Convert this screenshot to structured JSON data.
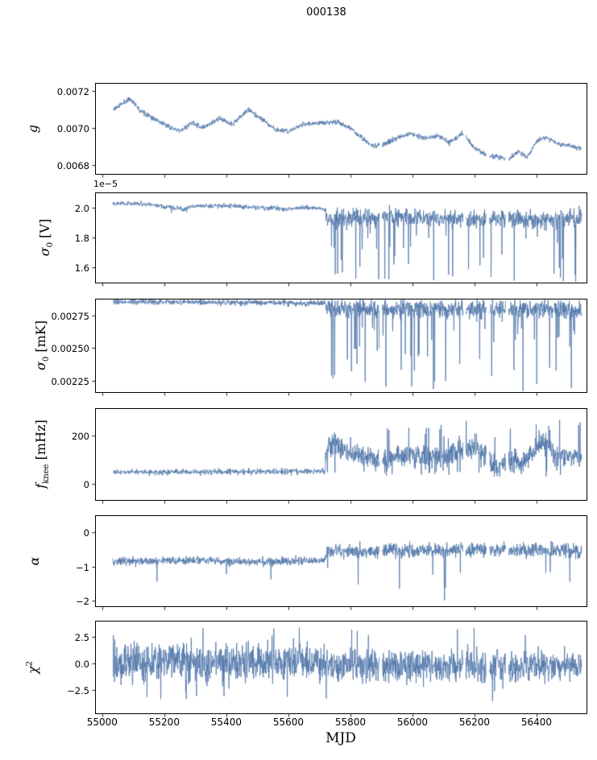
{
  "chart_data": {
    "type": "line",
    "title": "000138",
    "xlabel": "MJD",
    "line_color": "#4c74a8",
    "background": "#ffffff",
    "x_axis": {
      "min": 54977,
      "max": 56561,
      "ticks": [
        55000,
        55200,
        55400,
        55600,
        55800,
        56000,
        56200,
        56400
      ],
      "tick_labels": [
        "55000",
        "55200",
        "55400",
        "55600",
        "55800",
        "56000",
        "56200",
        "56400"
      ]
    },
    "x_start": 55035,
    "x_end": 56545,
    "n_points": 1600,
    "gaps": [
      [
        55893,
        55903
      ],
      [
        56163,
        56172
      ],
      [
        56238,
        56248
      ],
      [
        56300,
        56310
      ]
    ],
    "panels": [
      {
        "name": "g",
        "ylabel": {
          "main": "g",
          "sub": "",
          "sup": "",
          "unit": ""
        },
        "offset_text": "",
        "ylim": [
          0.00675,
          0.007245
        ],
        "yticks": [
          0.0068,
          0.007,
          0.0072
        ],
        "ytick_labels": [
          "0.0068",
          "0.0070",
          "0.0072"
        ],
        "seed": 11,
        "signal": {
          "anchors": [
            [
              55035,
              0.0071
            ],
            [
              55090,
              0.00716
            ],
            [
              55120,
              0.0071
            ],
            [
              55200,
              0.00702
            ],
            [
              55250,
              0.00698
            ],
            [
              55290,
              0.00703
            ],
            [
              55320,
              0.007
            ],
            [
              55380,
              0.00705
            ],
            [
              55420,
              0.00702
            ],
            [
              55470,
              0.0071
            ],
            [
              55520,
              0.00704
            ],
            [
              55560,
              0.00699
            ],
            [
              55600,
              0.00698
            ],
            [
              55650,
              0.00702
            ],
            [
              55700,
              0.00703
            ],
            [
              55760,
              0.00703
            ],
            [
              55800,
              0.007
            ],
            [
              55840,
              0.00694
            ],
            [
              55870,
              0.0069
            ],
            [
              55920,
              0.00692
            ],
            [
              55960,
              0.00695
            ],
            [
              56000,
              0.00697
            ],
            [
              56040,
              0.00694
            ],
            [
              56080,
              0.00696
            ],
            [
              56120,
              0.00692
            ],
            [
              56160,
              0.00697
            ],
            [
              56200,
              0.00689
            ],
            [
              56240,
              0.00685
            ],
            [
              56280,
              0.00684
            ],
            [
              56310,
              0.00683
            ],
            [
              56340,
              0.00687
            ],
            [
              56370,
              0.00684
            ],
            [
              56400,
              0.00693
            ],
            [
              56430,
              0.00695
            ],
            [
              56460,
              0.00692
            ],
            [
              56512,
              0.0069
            ],
            [
              56545,
              0.00689
            ]
          ],
          "noise": [
            {
              "x0": 55035,
              "x1": 56545,
              "amp": 1.2e-05
            }
          ],
          "spikes": []
        }
      },
      {
        "name": "sigma0_V",
        "ylabel": {
          "main": "σ",
          "sub": "0",
          "sup": "",
          "unit": " [V]"
        },
        "offset_text": "1e−5",
        "ylim": [
          1.5,
          2.1
        ],
        "yticks": [
          1.6,
          1.8,
          2.0
        ],
        "ytick_labels": [
          "1.6",
          "1.8",
          "2.0"
        ],
        "seed": 22,
        "signal": {
          "anchors": [
            [
              55035,
              2.03
            ],
            [
              55150,
              2.02
            ],
            [
              55220,
              2.0
            ],
            [
              55260,
              1.99
            ],
            [
              55300,
              2.01
            ],
            [
              55400,
              2.01
            ],
            [
              55500,
              2.0
            ],
            [
              55600,
              1.99
            ],
            [
              55660,
              2.0
            ],
            [
              55718,
              1.99
            ],
            [
              55722,
              1.93
            ],
            [
              55800,
              1.93
            ],
            [
              55900,
              1.94
            ],
            [
              56000,
              1.93
            ],
            [
              56100,
              1.93
            ],
            [
              56200,
              1.92
            ],
            [
              56300,
              1.93
            ],
            [
              56400,
              1.92
            ],
            [
              56545,
              1.93
            ]
          ],
          "noise": [
            {
              "x0": 55035,
              "x1": 55720,
              "amp": 0.013
            },
            {
              "x0": 55720,
              "x1": 56545,
              "amp": 0.05
            }
          ],
          "spikes": [
            {
              "x0": 55722,
              "x1": 56545,
              "rate": 0.05,
              "lo": 1.55,
              "hi": 1.85
            },
            {
              "x0": 55722,
              "x1": 56545,
              "rate": 0.012,
              "lo": 1.5,
              "hi": 1.57
            },
            {
              "x0": 55210,
              "x1": 55330,
              "rate": 0.03,
              "lo": 1.95,
              "hi": 1.99
            }
          ]
        }
      },
      {
        "name": "sigma0_mK",
        "ylabel": {
          "main": "σ",
          "sub": "0",
          "sup": "",
          "unit": " [mK]"
        },
        "offset_text": "",
        "ylim": [
          0.00216,
          0.00288
        ],
        "yticks": [
          0.00225,
          0.0025,
          0.00275
        ],
        "ytick_labels": [
          "0.00225",
          "0.00250",
          "0.00275"
        ],
        "seed": 33,
        "signal": {
          "anchors": [
            [
              55035,
              0.002855
            ],
            [
              55300,
              0.002855
            ],
            [
              55500,
              0.00285
            ],
            [
              55718,
              0.002845
            ],
            [
              55722,
              0.002805
            ],
            [
              56000,
              0.0028
            ],
            [
              56200,
              0.002795
            ],
            [
              56400,
              0.0028
            ],
            [
              56545,
              0.002795
            ]
          ],
          "noise": [
            {
              "x0": 55035,
              "x1": 55720,
              "amp": 2e-05
            },
            {
              "x0": 55720,
              "x1": 56545,
              "amp": 6e-05
            }
          ],
          "spikes": [
            {
              "x0": 55722,
              "x1": 56545,
              "rate": 0.05,
              "lo": 0.00224,
              "hi": 0.00266
            },
            {
              "x0": 55722,
              "x1": 56545,
              "rate": 0.012,
              "lo": 0.00216,
              "hi": 0.00226
            }
          ]
        }
      },
      {
        "name": "f_knee",
        "ylabel": {
          "main": "f",
          "sub": "knee",
          "sup": "",
          "unit": " [mHz]"
        },
        "offset_text": "",
        "ylim": [
          -67,
          313
        ],
        "yticks": [
          0,
          200
        ],
        "ytick_labels": [
          "0",
          "200"
        ],
        "seed": 44,
        "signal": {
          "anchors": [
            [
              55035,
              48
            ],
            [
              55718,
              52
            ],
            [
              55724,
              150
            ],
            [
              55760,
              160
            ],
            [
              55800,
              130
            ],
            [
              55850,
              110
            ],
            [
              55880,
              95
            ],
            [
              55920,
              100
            ],
            [
              55960,
              120
            ],
            [
              56000,
              115
            ],
            [
              56050,
              105
            ],
            [
              56100,
              120
            ],
            [
              56150,
              135
            ],
            [
              56200,
              150
            ],
            [
              56230,
              120
            ],
            [
              56260,
              80
            ],
            [
              56290,
              70
            ],
            [
              56320,
              90
            ],
            [
              56360,
              100
            ],
            [
              56400,
              160
            ],
            [
              56430,
              170
            ],
            [
              56460,
              120
            ],
            [
              56545,
              115
            ]
          ],
          "noise": [
            {
              "x0": 55035,
              "x1": 55720,
              "amp": 10
            },
            {
              "x0": 55720,
              "x1": 56545,
              "amp": 40
            }
          ],
          "spikes": [
            {
              "x0": 55722,
              "x1": 56545,
              "rate": 0.035,
              "lo": 180,
              "hi": 270
            },
            {
              "x0": 55722,
              "x1": 56545,
              "rate": 0.03,
              "lo": 30,
              "hi": 55
            }
          ]
        }
      },
      {
        "name": "alpha",
        "ylabel": {
          "main": "α",
          "sub": "",
          "sup": "",
          "unit": ""
        },
        "offset_text": "",
        "ylim": [
          -2.16,
          0.49
        ],
        "yticks": [
          -2,
          -1,
          0
        ],
        "ytick_labels": [
          "−2",
          "−1",
          "0"
        ],
        "seed": 55,
        "signal": {
          "anchors": [
            [
              55035,
              -0.85
            ],
            [
              55300,
              -0.82
            ],
            [
              55450,
              -0.88
            ],
            [
              55600,
              -0.85
            ],
            [
              55718,
              -0.83
            ],
            [
              55723,
              -0.55
            ],
            [
              56000,
              -0.55
            ],
            [
              56200,
              -0.5
            ],
            [
              56545,
              -0.55
            ]
          ],
          "noise": [
            {
              "x0": 55035,
              "x1": 55720,
              "amp": 0.1
            },
            {
              "x0": 55720,
              "x1": 56545,
              "amp": 0.17
            }
          ],
          "spikes": [
            {
              "x0": 55722,
              "x1": 56545,
              "rate": 0.012,
              "lo": -1.7,
              "hi": -1.05
            },
            {
              "x0": 56098,
              "x1": 56112,
              "rate": 0.25,
              "lo": -2.05,
              "hi": -1.5
            },
            {
              "x0": 55060,
              "x1": 55718,
              "rate": 0.006,
              "lo": -1.45,
              "hi": -1.1
            }
          ]
        }
      },
      {
        "name": "chi2",
        "ylabel": {
          "main": "χ",
          "sub": "",
          "sup": "2",
          "unit": ""
        },
        "offset_text": "",
        "ylim": [
          -4.7,
          4.0
        ],
        "yticks": [
          -2.5,
          0,
          2.5
        ],
        "ytick_labels": [
          "−2.5",
          "0.0",
          "2.5"
        ],
        "seed": 66,
        "signal": {
          "anchors": [
            [
              55035,
              0.1
            ],
            [
              55718,
              0.1
            ],
            [
              55724,
              -0.2
            ],
            [
              56545,
              -0.2
            ]
          ],
          "noise": [
            {
              "x0": 55035,
              "x1": 55720,
              "amp": 1.5
            },
            {
              "x0": 55720,
              "x1": 56545,
              "amp": 1.3
            }
          ],
          "spikes": [
            {
              "x0": 55035,
              "x1": 56545,
              "rate": 0.01,
              "lo": 2.6,
              "hi": 3.5
            },
            {
              "x0": 55035,
              "x1": 56545,
              "rate": 0.01,
              "lo": -3.6,
              "hi": -2.6
            }
          ]
        }
      }
    ]
  }
}
